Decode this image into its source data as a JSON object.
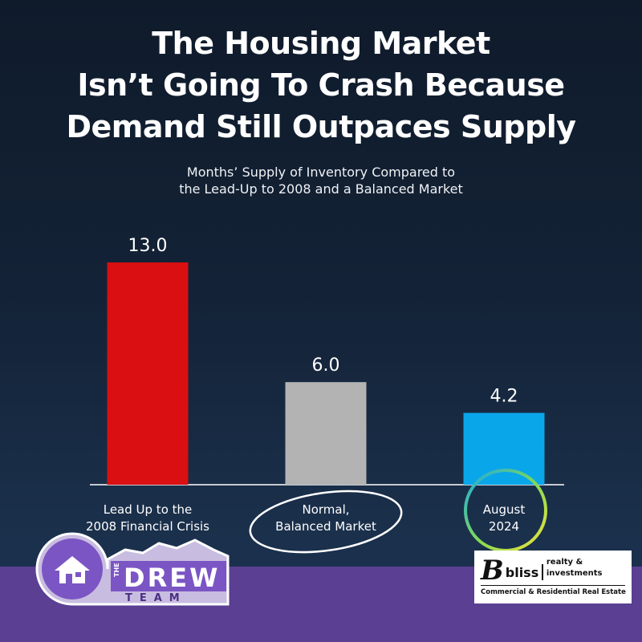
{
  "header": {
    "title_lines": [
      "The Housing Market",
      "Isn’t Going To Crash Because",
      "Demand Still Outpaces Supply"
    ],
    "subtitle_lines": [
      "Months’ Supply of Inventory Compared to",
      "the Lead-Up to 2008 and a Balanced Market"
    ]
  },
  "chart_data": {
    "type": "bar",
    "categories": [
      [
        "Lead Up to the",
        "2008 Financial Crisis"
      ],
      [
        "Normal,",
        "Balanced Market"
      ],
      [
        "August",
        "2024"
      ]
    ],
    "values": [
      13.0,
      6.0,
      4.2
    ],
    "value_labels": [
      "13.0",
      "6.0",
      "4.2"
    ],
    "colors": [
      "#d90f12",
      "#b3b3b3",
      "#0aa6ea"
    ],
    "ylim": [
      0,
      13.0
    ],
    "grid": false,
    "legend": false
  },
  "logos": {
    "drew_team": {
      "small_text": "THE",
      "main_text": "DREW",
      "sub_text": "TEAM"
    },
    "bliss": {
      "name": "bliss",
      "tagline": "realty & investments",
      "subline": "Commercial & Residential Real Estate"
    }
  },
  "colors": {
    "background_top": "#0f1b2b",
    "background_bottom": "#1c3352",
    "band": "#5a3f92",
    "circle_august": [
      "#1aa9e6",
      "#7ed957",
      "#f2e43a"
    ]
  }
}
